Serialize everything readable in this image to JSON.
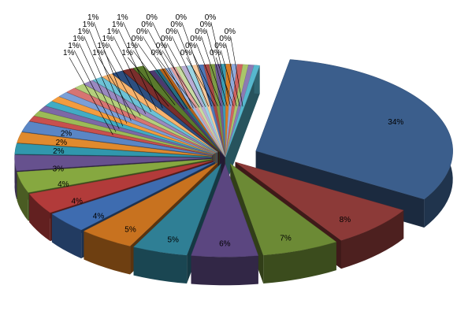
{
  "chart_data": {
    "type": "pie",
    "style": "3d-exploded",
    "title": "",
    "legend": "none",
    "label_format": "percent",
    "slices": [
      {
        "value": 34,
        "label": "34%",
        "color": "#3b5e8c"
      },
      {
        "value": 8,
        "label": "8%",
        "color": "#8c3a38"
      },
      {
        "value": 7,
        "label": "7%",
        "color": "#6c8a35"
      },
      {
        "value": 6,
        "label": "6%",
        "color": "#5b4680"
      },
      {
        "value": 5,
        "label": "5%",
        "color": "#2f7f95"
      },
      {
        "value": 5,
        "label": "5%",
        "color": "#c8721f"
      },
      {
        "value": 4,
        "label": "4%",
        "color": "#3e6cb0"
      },
      {
        "value": 4,
        "label": "4%",
        "color": "#b23b3a"
      },
      {
        "value": 4,
        "label": "4%",
        "color": "#86a840"
      },
      {
        "value": 3,
        "label": "3%",
        "color": "#66518e"
      },
      {
        "value": 2,
        "label": "2%",
        "color": "#3197ad"
      },
      {
        "value": 2,
        "label": "2%",
        "color": "#e08a2e"
      },
      {
        "value": 2,
        "label": "2%",
        "color": "#5a86c5"
      },
      {
        "value": 1,
        "label": "1%",
        "color": "#c8504e"
      },
      {
        "value": 1,
        "label": "1%",
        "color": "#9cbb57"
      },
      {
        "value": 1,
        "label": "1%",
        "color": "#7d68a6"
      },
      {
        "value": 1,
        "label": "1%",
        "color": "#42acc4"
      },
      {
        "value": 1,
        "label": "1%",
        "color": "#f39c3e"
      },
      {
        "value": 1,
        "label": "1%",
        "color": "#7b9fd6"
      },
      {
        "value": 1,
        "label": "1%",
        "color": "#d77472"
      },
      {
        "value": 1,
        "label": "1%",
        "color": "#b4cf7c"
      },
      {
        "value": 1,
        "label": "1%",
        "color": "#9a89bf"
      },
      {
        "value": 1,
        "label": "1%",
        "color": "#6cc2d6"
      },
      {
        "value": 1,
        "label": "1%",
        "color": "#f7b36d"
      },
      {
        "value": 1,
        "label": "1%",
        "color": "#2d4f80"
      },
      {
        "value": 1,
        "label": "1%",
        "color": "#7a2e2c"
      },
      {
        "value": 1,
        "label": "1%",
        "color": "#5a7a2c"
      },
      {
        "value": 0.5,
        "label": "0%",
        "color": "#4d3a70"
      },
      {
        "value": 0.5,
        "label": "0%",
        "color": "#266d82"
      },
      {
        "value": 0.5,
        "label": "0%",
        "color": "#b5621a"
      },
      {
        "value": 0.5,
        "label": "0%",
        "color": "#9cb6e0"
      },
      {
        "value": 0.5,
        "label": "0%",
        "color": "#e3a09f"
      },
      {
        "value": 0.5,
        "label": "0%",
        "color": "#c8dca3"
      },
      {
        "value": 0.5,
        "label": "0%",
        "color": "#b8acd5"
      },
      {
        "value": 0.5,
        "label": "0%",
        "color": "#9ad4e2"
      },
      {
        "value": 0.5,
        "label": "0%",
        "color": "#f9c99a"
      },
      {
        "value": 0.5,
        "label": "0%",
        "color": "#4d78b8"
      },
      {
        "value": 0.5,
        "label": "0%",
        "color": "#a84845"
      },
      {
        "value": 0.5,
        "label": "0%",
        "color": "#7e9c45"
      },
      {
        "value": 0.5,
        "label": "0%",
        "color": "#6e5b96"
      },
      {
        "value": 0.5,
        "label": "0%",
        "color": "#3a9cb3"
      },
      {
        "value": 0.5,
        "label": "0%",
        "color": "#d67c24"
      },
      {
        "value": 0.5,
        "label": "0%",
        "color": "#8eaadb"
      },
      {
        "value": 0.5,
        "label": "0%",
        "color": "#cf6360"
      },
      {
        "value": 0.5,
        "label": "0%",
        "color": "#aac66a"
      },
      {
        "value": 0.5,
        "label": "0%",
        "color": "#8c7ab3"
      },
      {
        "value": 0.5,
        "label": "0%",
        "color": "#57b8ce"
      }
    ]
  }
}
